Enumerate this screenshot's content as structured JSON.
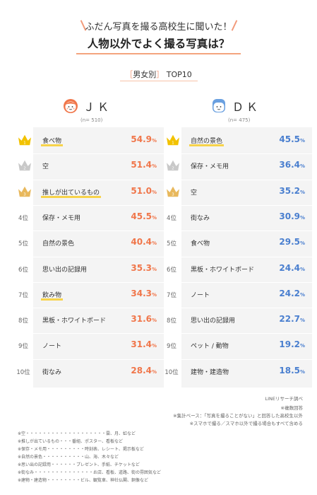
{
  "header": {
    "line1": "ふだん写真を撮る高校生に聞いた！",
    "line2": "人物以外でよく撮る写真は？",
    "subtitle_left": "［",
    "subtitle_main": "男女別",
    "subtitle_right": "］",
    "subtitle_tail": " TOP10"
  },
  "colors": {
    "jk_accent": "#f0764a",
    "dk_accent": "#4a7fcf",
    "gold": "#f2c200",
    "silver": "#c9c9c9",
    "bronze": "#e8b85c",
    "underline": "#f7d34a",
    "title_line": "#f4a47e"
  },
  "chart_data": [
    {
      "type": "table",
      "title": "ＪＫ",
      "n_label": "(n= 510)",
      "value_unit": "%",
      "rank_suffix": "位",
      "rows": [
        {
          "rank": 1,
          "label": "食べ物",
          "value": 54.9,
          "underline": true
        },
        {
          "rank": 2,
          "label": "空",
          "value": 51.4,
          "underline": false
        },
        {
          "rank": 3,
          "label": "推しが出ているもの",
          "value": 51.0,
          "underline": true
        },
        {
          "rank": 4,
          "label": "保存・メモ用",
          "value": 45.5,
          "underline": false
        },
        {
          "rank": 5,
          "label": "自然の景色",
          "value": 40.4,
          "underline": false
        },
        {
          "rank": 6,
          "label": "思い出の記録用",
          "value": 35.3,
          "underline": false
        },
        {
          "rank": 7,
          "label": "飲み物",
          "value": 34.3,
          "underline": true
        },
        {
          "rank": 8,
          "label": "黒板・ホワイトボード",
          "value": 31.6,
          "underline": false
        },
        {
          "rank": 9,
          "label": "ノート",
          "value": 31.4,
          "underline": false
        },
        {
          "rank": 10,
          "label": "街なみ",
          "value": 28.4,
          "underline": false
        }
      ]
    },
    {
      "type": "table",
      "title": "ＤＫ",
      "n_label": "(n= 475)",
      "value_unit": "%",
      "rank_suffix": "位",
      "rows": [
        {
          "rank": 1,
          "label": "自然の景色",
          "value": 45.5,
          "underline": true
        },
        {
          "rank": 2,
          "label": "保存・メモ用",
          "value": 36.4,
          "underline": false
        },
        {
          "rank": 3,
          "label": "空",
          "value": 35.2,
          "underline": false
        },
        {
          "rank": 4,
          "label": "街なみ",
          "value": 30.9,
          "underline": false
        },
        {
          "rank": 5,
          "label": "食べ物",
          "value": 29.5,
          "underline": false
        },
        {
          "rank": 6,
          "label": "黒板・ホワイトボード",
          "value": 24.4,
          "underline": false
        },
        {
          "rank": 7,
          "label": "ノート",
          "value": 24.2,
          "underline": false
        },
        {
          "rank": 8,
          "label": "思い出の記録用",
          "value": 22.7,
          "underline": false
        },
        {
          "rank": 9,
          "label": "ペット / 動物",
          "value": 19.2,
          "underline": false
        },
        {
          "rank": 10,
          "label": "建物・建造物",
          "value": 18.5,
          "underline": false
        }
      ]
    }
  ],
  "source_notes": [
    "LINEリサーチ調べ",
    "※複数回答",
    "※集計ベース：「写真を撮ることがない」と回答した高校生以外",
    "※スマホで撮る／スマホ以外で撮る場合もすべて含める"
  ],
  "footnotes": [
    "※空・・・・・・・・・・・・・・・・・・・雲、月、虹など",
    "※推しが出ているもの・・・番組、ポスター、看板など",
    "※保存・メモ用・・・・・・・・・時刻表、レシート、掲示板など",
    "※自然の景色・・・・・・・・・・山、海、木々など",
    "※思い出の記録用・・・・・・プレゼント、手紙、チケットなど",
    "※街なみ・・・・・・・・・・・・・・お店、看板、道路、街の雰囲気など",
    "※建物・建造物・・・・・・・・ビル、観覧車、神社仏閣、銅像など"
  ]
}
